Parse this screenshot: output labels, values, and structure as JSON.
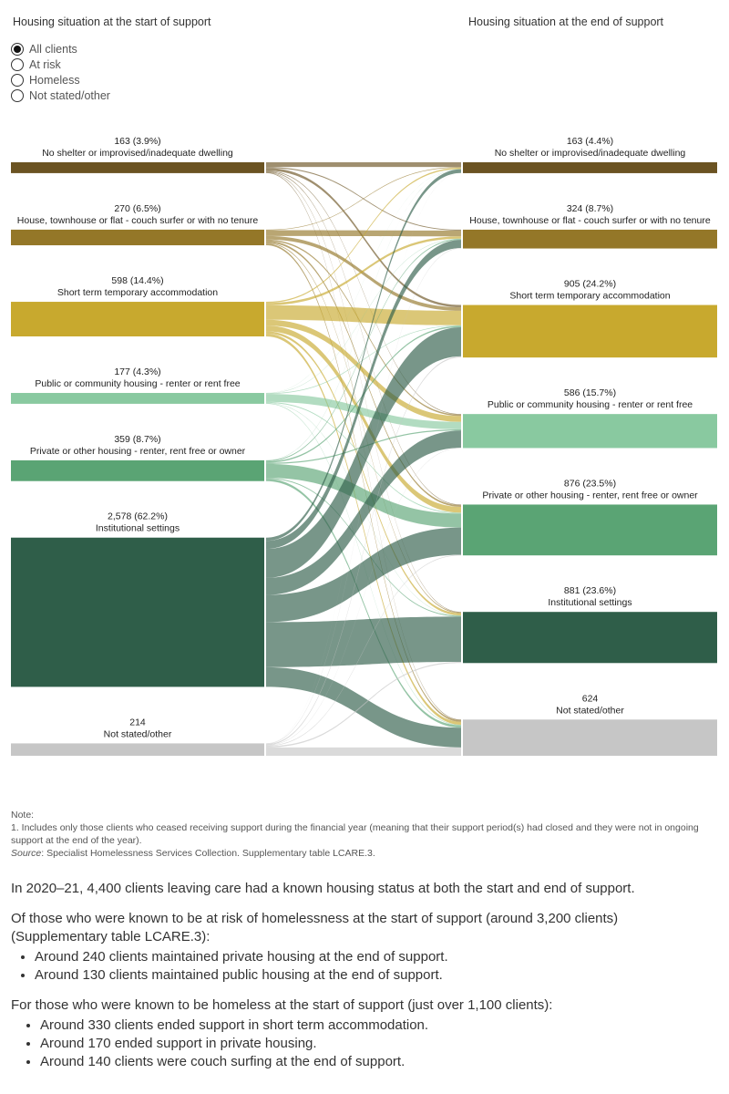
{
  "header": {
    "left_title": "Housing situation at the start of support",
    "right_title": "Housing situation at the end of support"
  },
  "filters": [
    {
      "label": "All clients",
      "selected": true
    },
    {
      "label": "At risk",
      "selected": false
    },
    {
      "label": "Homeless",
      "selected": false
    },
    {
      "label": "Not stated/other",
      "selected": false
    }
  ],
  "chart_data": {
    "type": "sankey",
    "start_nodes": [
      {
        "id": "s_noshelter",
        "label": "No shelter or improvised/inadequate dwelling",
        "value_label": "163 (3.9%)",
        "value": 163,
        "color": "#6b5322"
      },
      {
        "id": "s_couch",
        "label": "House, townhouse or flat - couch surfer or with no tenure",
        "value_label": "270 (6.5%)",
        "value": 270,
        "color": "#947728"
      },
      {
        "id": "s_short",
        "label": "Short term temporary accommodation",
        "value_label": "598 (14.4%)",
        "value": 598,
        "color": "#c8a92e"
      },
      {
        "id": "s_public",
        "label": "Public or community housing - renter or rent free",
        "value_label": "177 (4.3%)",
        "value": 177,
        "color": "#89c9a0"
      },
      {
        "id": "s_private",
        "label": "Private or other housing - renter, rent free or owner",
        "value_label": "359 (8.7%)",
        "value": 359,
        "color": "#5aa474"
      },
      {
        "id": "s_inst",
        "label": "Institutional settings",
        "value_label": "2,578 (62.2%)",
        "value": 2578,
        "color": "#2f5e49"
      },
      {
        "id": "s_ns",
        "label": "Not stated/other",
        "value_label": "214",
        "value": 214,
        "color": "#c6c6c6"
      }
    ],
    "end_nodes": [
      {
        "id": "e_noshelter",
        "label": "No shelter or improvised/inadequate dwelling",
        "value_label": "163 (4.4%)",
        "value": 163,
        "color": "#6b5322"
      },
      {
        "id": "e_couch",
        "label": "House, townhouse or flat - couch surfer or with no tenure",
        "value_label": "324 (8.7%)",
        "value": 324,
        "color": "#947728"
      },
      {
        "id": "e_short",
        "label": "Short term temporary accommodation",
        "value_label": "905 (24.2%)",
        "value": 905,
        "color": "#c8a92e"
      },
      {
        "id": "e_public",
        "label": "Public or community housing - renter or rent free",
        "value_label": "586 (15.7%)",
        "value": 586,
        "color": "#89c9a0"
      },
      {
        "id": "e_private",
        "label": "Private or other housing - renter, rent free or owner",
        "value_label": "876 (23.5%)",
        "value": 876,
        "color": "#5aa474"
      },
      {
        "id": "e_inst",
        "label": "Institutional settings",
        "value_label": "881 (23.6%)",
        "value": 881,
        "color": "#2f5e49"
      },
      {
        "id": "e_ns",
        "label": "Not stated/other",
        "value_label": "624",
        "value": 624,
        "color": "#c6c6c6"
      }
    ],
    "flows": [
      [
        "s_noshelter",
        "e_noshelter",
        70
      ],
      [
        "s_noshelter",
        "e_couch",
        15
      ],
      [
        "s_noshelter",
        "e_short",
        40
      ],
      [
        "s_noshelter",
        "e_public",
        10
      ],
      [
        "s_noshelter",
        "e_private",
        10
      ],
      [
        "s_noshelter",
        "e_inst",
        8
      ],
      [
        "s_noshelter",
        "e_ns",
        10
      ],
      [
        "s_couch",
        "e_noshelter",
        10
      ],
      [
        "s_couch",
        "e_couch",
        100
      ],
      [
        "s_couch",
        "e_short",
        60
      ],
      [
        "s_couch",
        "e_public",
        25
      ],
      [
        "s_couch",
        "e_private",
        30
      ],
      [
        "s_couch",
        "e_inst",
        15
      ],
      [
        "s_couch",
        "e_ns",
        30
      ],
      [
        "s_short",
        "e_noshelter",
        20
      ],
      [
        "s_short",
        "e_couch",
        40
      ],
      [
        "s_short",
        "e_short",
        250
      ],
      [
        "s_short",
        "e_public",
        100
      ],
      [
        "s_short",
        "e_private",
        100
      ],
      [
        "s_short",
        "e_inst",
        38
      ],
      [
        "s_short",
        "e_ns",
        50
      ],
      [
        "s_public",
        "e_noshelter",
        2
      ],
      [
        "s_public",
        "e_couch",
        5
      ],
      [
        "s_public",
        "e_short",
        10
      ],
      [
        "s_public",
        "e_public",
        130
      ],
      [
        "s_public",
        "e_private",
        15
      ],
      [
        "s_public",
        "e_inst",
        5
      ],
      [
        "s_public",
        "e_ns",
        10
      ],
      [
        "s_private",
        "e_noshelter",
        3
      ],
      [
        "s_private",
        "e_couch",
        15
      ],
      [
        "s_private",
        "e_short",
        25
      ],
      [
        "s_private",
        "e_public",
        20
      ],
      [
        "s_private",
        "e_private",
        240
      ],
      [
        "s_private",
        "e_inst",
        16
      ],
      [
        "s_private",
        "e_ns",
        40
      ],
      [
        "s_inst",
        "e_noshelter",
        55
      ],
      [
        "s_inst",
        "e_couch",
        140
      ],
      [
        "s_inst",
        "e_short",
        500
      ],
      [
        "s_inst",
        "e_public",
        295
      ],
      [
        "s_inst",
        "e_private",
        470
      ],
      [
        "s_inst",
        "e_inst",
        778
      ],
      [
        "s_inst",
        "e_ns",
        340
      ],
      [
        "s_ns",
        "e_noshelter",
        3
      ],
      [
        "s_ns",
        "e_couch",
        9
      ],
      [
        "s_ns",
        "e_short",
        20
      ],
      [
        "s_ns",
        "e_public",
        6
      ],
      [
        "s_ns",
        "e_private",
        11
      ],
      [
        "s_ns",
        "e_inst",
        21
      ],
      [
        "s_ns",
        "e_ns",
        144
      ]
    ]
  },
  "note": {
    "heading": "Note:",
    "line1": "1.  Includes only those clients who ceased receiving support during the financial year (meaning that their support period(s) had closed and they were not in ongoing support at the end of the year).",
    "source_label": "Source",
    "source_text": ": Specialist Homelessness Services Collection. Supplementary table LCARE.3."
  },
  "body": {
    "para1": "In 2020–21, 4,400 clients leaving care had a known housing status at both the start and end of support.",
    "para2": "Of those who were known to be at risk of homelessness at the start of support (around 3,200 clients) (Supplementary table LCARE.3):",
    "list1": [
      "Around 240 clients maintained private housing at the end of support.",
      "Around 130 clients maintained public housing at the end of support."
    ],
    "para3": "For those who were known to be homeless at the start of support (just over 1,100 clients):",
    "list2": [
      "Around 330 clients ended support in short term accommodation.",
      "Around 170 ended support in private housing.",
      "Around 140 clients were couch surfing at the end of support."
    ]
  }
}
